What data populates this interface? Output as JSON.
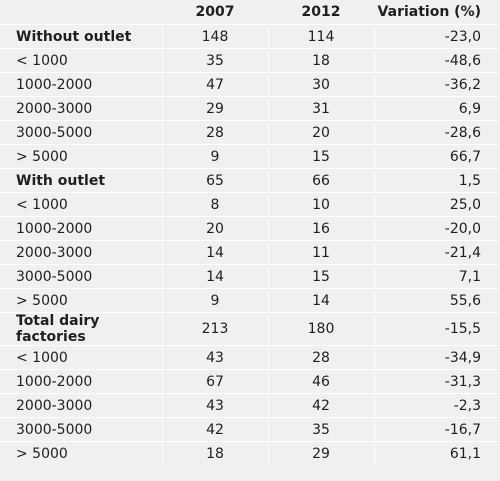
{
  "columns": [
    "",
    "2007",
    "2012",
    "Variation (%)"
  ],
  "rows": [
    {
      "label": "Without outlet",
      "v2007": "148",
      "v2012": "114",
      "variation": "-23,0",
      "group": true
    },
    {
      "label": "< 1000",
      "v2007": "35",
      "v2012": "18",
      "variation": "-48,6",
      "group": false
    },
    {
      "label": "1000-2000",
      "v2007": "47",
      "v2012": "30",
      "variation": "-36,2",
      "group": false
    },
    {
      "label": "2000-3000",
      "v2007": "29",
      "v2012": "31",
      "variation": "6,9",
      "group": false
    },
    {
      "label": "3000-5000",
      "v2007": "28",
      "v2012": "20",
      "variation": "-28,6",
      "group": false
    },
    {
      "label": "> 5000",
      "v2007": "9",
      "v2012": "15",
      "variation": "66,7",
      "group": false
    },
    {
      "label": "With outlet",
      "v2007": "65",
      "v2012": "66",
      "variation": "1,5",
      "group": true
    },
    {
      "label": "< 1000",
      "v2007": "8",
      "v2012": "10",
      "variation": "25,0",
      "group": false
    },
    {
      "label": "1000-2000",
      "v2007": "20",
      "v2012": "16",
      "variation": "-20,0",
      "group": false
    },
    {
      "label": "2000-3000",
      "v2007": "14",
      "v2012": "11",
      "variation": "-21,4",
      "group": false
    },
    {
      "label": "3000-5000",
      "v2007": "14",
      "v2012": "15",
      "variation": "7,1",
      "group": false
    },
    {
      "label": "> 5000",
      "v2007": "9",
      "v2012": "14",
      "variation": "55,6",
      "group": false
    },
    {
      "label": "Total dairy factories",
      "v2007": "213",
      "v2012": "180",
      "variation": "-15,5",
      "group": true
    },
    {
      "label": "< 1000",
      "v2007": "43",
      "v2012": "28",
      "variation": "-34,9",
      "group": false
    },
    {
      "label": "1000-2000",
      "v2007": "67",
      "v2012": "46",
      "variation": "-31,3",
      "group": false
    },
    {
      "label": "2000-3000",
      "v2007": "43",
      "v2012": "42",
      "variation": "-2,3",
      "group": false
    },
    {
      "label": "3000-5000",
      "v2007": "42",
      "v2012": "35",
      "variation": "-16,7",
      "group": false
    },
    {
      "label": "> 5000",
      "v2007": "18",
      "v2012": "29",
      "variation": "61,1",
      "group": false
    }
  ]
}
